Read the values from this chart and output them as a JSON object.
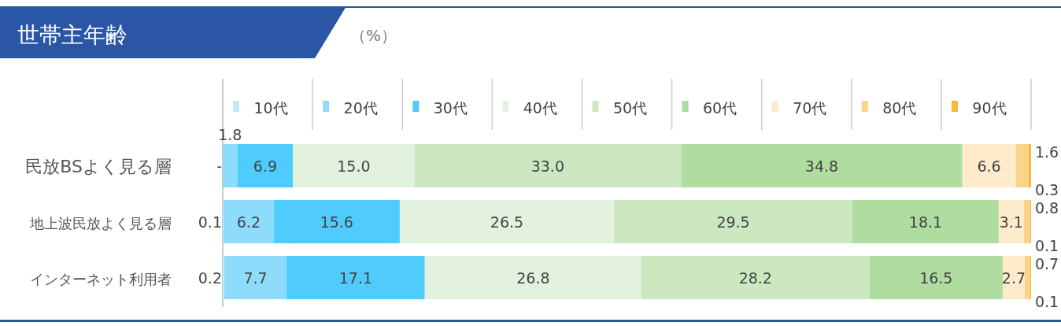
{
  "chart_data": {
    "type": "bar",
    "orientation": "horizontal",
    "stacked": true,
    "title": "世帯主年齢",
    "subtitle": "（%）",
    "legend": "top",
    "categories": [
      "民放BSよく見る層",
      "地上波民放よく見る層",
      "インターネット利用者"
    ],
    "series": [
      {
        "name": "10代",
        "color": "#bfe9fb",
        "values": [
          null,
          0.1,
          0.2
        ],
        "value_labels": [
          "-",
          "0.1",
          "0.2"
        ]
      },
      {
        "name": "20代",
        "color": "#8edcfb",
        "values": [
          1.8,
          6.2,
          7.7
        ],
        "value_labels": [
          "1.8",
          "6.2",
          "7.7"
        ]
      },
      {
        "name": "30代",
        "color": "#4fcbfd",
        "values": [
          6.9,
          15.6,
          17.1
        ],
        "value_labels": [
          "6.9",
          "15.6",
          "17.1"
        ]
      },
      {
        "name": "40代",
        "color": "#e2f2df",
        "values": [
          15.0,
          26.5,
          26.8
        ],
        "value_labels": [
          "15.0",
          "26.5",
          "26.8"
        ]
      },
      {
        "name": "50代",
        "color": "#cbe8c0",
        "values": [
          33.0,
          29.5,
          28.2
        ],
        "value_labels": [
          "33.0",
          "29.5",
          "28.2"
        ]
      },
      {
        "name": "60代",
        "color": "#afdd9f",
        "values": [
          34.8,
          18.1,
          16.5
        ],
        "value_labels": [
          "34.8",
          "18.1",
          "16.5"
        ]
      },
      {
        "name": "70代",
        "color": "#fdebcb",
        "values": [
          6.6,
          3.1,
          2.7
        ],
        "value_labels": [
          "6.6",
          "3.1",
          "2.7"
        ]
      },
      {
        "name": "80代",
        "color": "#fad48a",
        "values": [
          1.6,
          0.8,
          0.7
        ],
        "value_labels": [
          "1.6",
          "0.8",
          "0.7"
        ]
      },
      {
        "name": "90代",
        "color": "#f6b93b",
        "values": [
          0.3,
          0.1,
          0.1
        ],
        "value_labels": [
          "0.3",
          "0.1",
          "0.1"
        ]
      }
    ]
  }
}
